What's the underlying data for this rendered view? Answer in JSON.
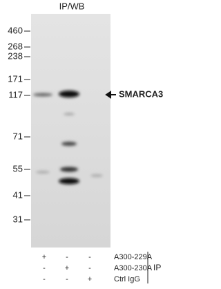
{
  "header": {
    "title": "IP/WB"
  },
  "markers": [
    "460",
    "268",
    "238",
    "171",
    "117",
    "71",
    "55",
    "41",
    "31"
  ],
  "band_label": "SMARCA3",
  "table": {
    "rows": [
      {
        "cells": [
          "+",
          "-",
          "-"
        ],
        "label": "A300-229A"
      },
      {
        "cells": [
          "-",
          "+",
          "-"
        ],
        "label": "A300-230A"
      },
      {
        "cells": [
          "-",
          "-",
          "+"
        ],
        "label": "Ctrl IgG"
      }
    ],
    "group_label": "IP"
  }
}
